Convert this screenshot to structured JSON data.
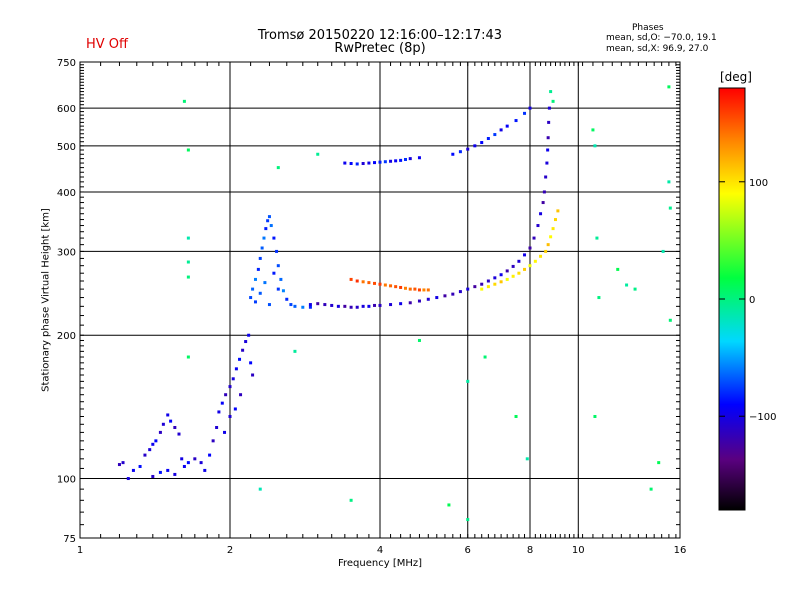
{
  "header": {
    "status": "HV Off",
    "title_line1": "Tromsø 20150220 12:16:00–12:17:43",
    "title_line2": "RwPretec (8p)",
    "phases_title": "Phases",
    "phases_o": "mean, sd,O: −70.0, 19.1",
    "phases_x": "mean, sd,X:  96.9, 27.0"
  },
  "colors": {
    "status": "#e00000"
  },
  "chart_data": {
    "type": "scatter",
    "title": "Tromsø 20150220 12:16:00–12:17:43",
    "subtitle": "RwPretec (8p)",
    "xlabel": "Frequency [MHz]",
    "ylabel": "Stationary phase Virtual Height [km]",
    "xscale": "log",
    "yscale": "log",
    "xlim": [
      1,
      16
    ],
    "ylim": [
      75,
      750
    ],
    "x_ticks": [
      1,
      2,
      4,
      6,
      8,
      10,
      16
    ],
    "x_tick_labels": [
      "1",
      "2",
      "4",
      "6",
      "8",
      "10",
      "16"
    ],
    "y_ticks": [
      75,
      100,
      200,
      300,
      400,
      500,
      600,
      750
    ],
    "y_tick_labels": [
      "75",
      "100",
      "200",
      "300",
      "400",
      "500",
      "600",
      "750"
    ],
    "grid": true,
    "grid_x": [
      2,
      4,
      6,
      8,
      10
    ],
    "grid_y": [
      100,
      200,
      300,
      400,
      500,
      600
    ],
    "colorbar": {
      "label": "[deg]",
      "range": [
        -180,
        180
      ],
      "ticks": [
        100,
        0,
        -100
      ],
      "tick_labels": [
        "100",
        "0",
        "−100"
      ]
    },
    "series": [
      {
        "points": [
          [
            1.2,
            107
          ],
          [
            1.22,
            108
          ],
          [
            1.25,
            100
          ],
          [
            1.28,
            104
          ],
          [
            1.32,
            106
          ],
          [
            1.35,
            112
          ],
          [
            1.38,
            115
          ],
          [
            1.4,
            118
          ],
          [
            1.42,
            120
          ],
          [
            1.45,
            125
          ],
          [
            1.47,
            130
          ],
          [
            1.5,
            136
          ],
          [
            1.52,
            132
          ],
          [
            1.55,
            128
          ],
          [
            1.58,
            124
          ],
          [
            1.6,
            110
          ],
          [
            1.5,
            104
          ],
          [
            1.45,
            103
          ],
          [
            1.4,
            101
          ],
          [
            1.55,
            102
          ],
          [
            1.62,
            106
          ],
          [
            1.65,
            108
          ],
          [
            1.7,
            110
          ],
          [
            1.75,
            108
          ],
          [
            1.78,
            104
          ],
          [
            1.82,
            112
          ],
          [
            1.85,
            120
          ],
          [
            1.88,
            128
          ],
          [
            1.9,
            138
          ],
          [
            1.93,
            144
          ],
          [
            1.96,
            150
          ],
          [
            2.0,
            156
          ],
          [
            2.03,
            162
          ],
          [
            2.06,
            170
          ],
          [
            2.09,
            178
          ],
          [
            2.12,
            186
          ],
          [
            2.15,
            194
          ],
          [
            2.18,
            200
          ],
          [
            2.2,
            175
          ],
          [
            2.22,
            165
          ],
          [
            2.0,
            135
          ],
          [
            1.95,
            125
          ],
          [
            2.05,
            140
          ],
          [
            2.1,
            150
          ]
        ],
        "phase": -100
      },
      {
        "points": [
          [
            2.2,
            240
          ],
          [
            2.22,
            250
          ],
          [
            2.25,
            262
          ],
          [
            2.28,
            275
          ],
          [
            2.3,
            290
          ],
          [
            2.32,
            305
          ],
          [
            2.34,
            320
          ],
          [
            2.36,
            335
          ],
          [
            2.38,
            348
          ],
          [
            2.4,
            355
          ],
          [
            2.42,
            340
          ],
          [
            2.45,
            320
          ],
          [
            2.48,
            300
          ],
          [
            2.5,
            280
          ],
          [
            2.53,
            262
          ],
          [
            2.56,
            248
          ],
          [
            2.6,
            238
          ],
          [
            2.65,
            232
          ],
          [
            2.7,
            230
          ],
          [
            2.8,
            229
          ],
          [
            2.9,
            229
          ],
          [
            2.25,
            235
          ],
          [
            2.3,
            245
          ],
          [
            2.35,
            258
          ],
          [
            2.45,
            270
          ],
          [
            2.5,
            250
          ],
          [
            2.4,
            232
          ]
        ],
        "phase": -70
      },
      {
        "points": [
          [
            2.9,
            232
          ],
          [
            3.0,
            233
          ],
          [
            3.1,
            232
          ],
          [
            3.2,
            231
          ],
          [
            3.3,
            230
          ],
          [
            3.4,
            230
          ],
          [
            3.5,
            229
          ],
          [
            3.6,
            229
          ],
          [
            3.7,
            230
          ],
          [
            3.8,
            230
          ],
          [
            3.9,
            231
          ],
          [
            4.0,
            231
          ],
          [
            4.2,
            232
          ],
          [
            4.4,
            233
          ],
          [
            4.6,
            234
          ],
          [
            4.8,
            236
          ],
          [
            5.0,
            238
          ],
          [
            5.2,
            240
          ],
          [
            5.4,
            242
          ],
          [
            5.6,
            244
          ],
          [
            5.8,
            247
          ],
          [
            6.0,
            250
          ],
          [
            6.2,
            253
          ],
          [
            6.4,
            256
          ],
          [
            6.6,
            260
          ],
          [
            6.8,
            264
          ],
          [
            7.0,
            268
          ],
          [
            7.2,
            273
          ],
          [
            7.4,
            279
          ],
          [
            7.6,
            286
          ],
          [
            7.8,
            295
          ],
          [
            8.0,
            305
          ],
          [
            8.15,
            320
          ],
          [
            8.3,
            340
          ],
          [
            8.4,
            360
          ],
          [
            8.5,
            380
          ],
          [
            8.55,
            400
          ],
          [
            8.6,
            430
          ],
          [
            8.65,
            460
          ],
          [
            8.68,
            490
          ],
          [
            8.7,
            520
          ],
          [
            8.72,
            560
          ],
          [
            8.75,
            600
          ]
        ],
        "phase": -110
      },
      {
        "points": [
          [
            3.4,
            460
          ],
          [
            3.5,
            459
          ],
          [
            3.6,
            458
          ],
          [
            3.7,
            459
          ],
          [
            3.8,
            460
          ],
          [
            3.9,
            461
          ],
          [
            4.0,
            462
          ],
          [
            4.1,
            463
          ],
          [
            4.2,
            464
          ],
          [
            4.3,
            465
          ],
          [
            4.4,
            466
          ],
          [
            4.5,
            468
          ],
          [
            4.6,
            470
          ],
          [
            4.8,
            472
          ],
          [
            5.6,
            480
          ],
          [
            5.8,
            486
          ],
          [
            6.0,
            492
          ],
          [
            6.2,
            500
          ],
          [
            6.4,
            508
          ],
          [
            6.6,
            518
          ],
          [
            6.8,
            528
          ],
          [
            7.0,
            540
          ],
          [
            7.2,
            550
          ],
          [
            7.5,
            565
          ],
          [
            7.8,
            585
          ],
          [
            8.0,
            600
          ]
        ],
        "phase": -90
      },
      {
        "points": [
          [
            3.5,
            262
          ],
          [
            3.6,
            260
          ],
          [
            3.7,
            259
          ],
          [
            3.8,
            258
          ],
          [
            3.9,
            257
          ],
          [
            4.0,
            256
          ],
          [
            4.1,
            255
          ],
          [
            4.2,
            254
          ],
          [
            4.3,
            253
          ],
          [
            4.4,
            252
          ],
          [
            4.5,
            251
          ],
          [
            4.6,
            250
          ],
          [
            4.7,
            250
          ],
          [
            4.8,
            249
          ],
          [
            4.9,
            249
          ],
          [
            5.0,
            249
          ]
        ],
        "phase": 150
      },
      {
        "points": [
          [
            6.4,
            250
          ],
          [
            6.6,
            253
          ],
          [
            6.8,
            256
          ],
          [
            7.0,
            259
          ],
          [
            7.2,
            262
          ],
          [
            7.4,
            266
          ],
          [
            7.6,
            270
          ],
          [
            7.8,
            275
          ],
          [
            8.0,
            280
          ],
          [
            8.2,
            286
          ],
          [
            8.4,
            293
          ],
          [
            8.6,
            300
          ],
          [
            8.7,
            310
          ],
          [
            8.8,
            322
          ],
          [
            8.9,
            335
          ],
          [
            9.0,
            350
          ],
          [
            9.1,
            365
          ]
        ],
        "phase": 100
      },
      {
        "points": [
          [
            1.62,
            620
          ],
          [
            1.65,
            490
          ],
          [
            1.65,
            320
          ],
          [
            1.65,
            285
          ],
          [
            1.65,
            265
          ],
          [
            1.65,
            180
          ],
          [
            2.3,
            95
          ],
          [
            2.7,
            185
          ],
          [
            3.5,
            90
          ],
          [
            4.8,
            195
          ],
          [
            5.5,
            88
          ],
          [
            6.0,
            160
          ],
          [
            6.0,
            82
          ],
          [
            6.5,
            180
          ],
          [
            7.5,
            135
          ],
          [
            7.9,
            110
          ],
          [
            8.8,
            650
          ],
          [
            8.9,
            620
          ],
          [
            10.7,
            540
          ],
          [
            10.8,
            500
          ],
          [
            10.9,
            320
          ],
          [
            11.0,
            240
          ],
          [
            10.8,
            135
          ],
          [
            12.0,
            275
          ],
          [
            12.5,
            255
          ],
          [
            13.0,
            250
          ],
          [
            14.0,
            95
          ],
          [
            14.5,
            108
          ],
          [
            15.2,
            420
          ],
          [
            15.3,
            370
          ],
          [
            15.3,
            215
          ],
          [
            15.2,
            665
          ],
          [
            14.8,
            300
          ],
          [
            3.0,
            480
          ],
          [
            2.5,
            450
          ]
        ],
        "phase": 0
      }
    ]
  }
}
